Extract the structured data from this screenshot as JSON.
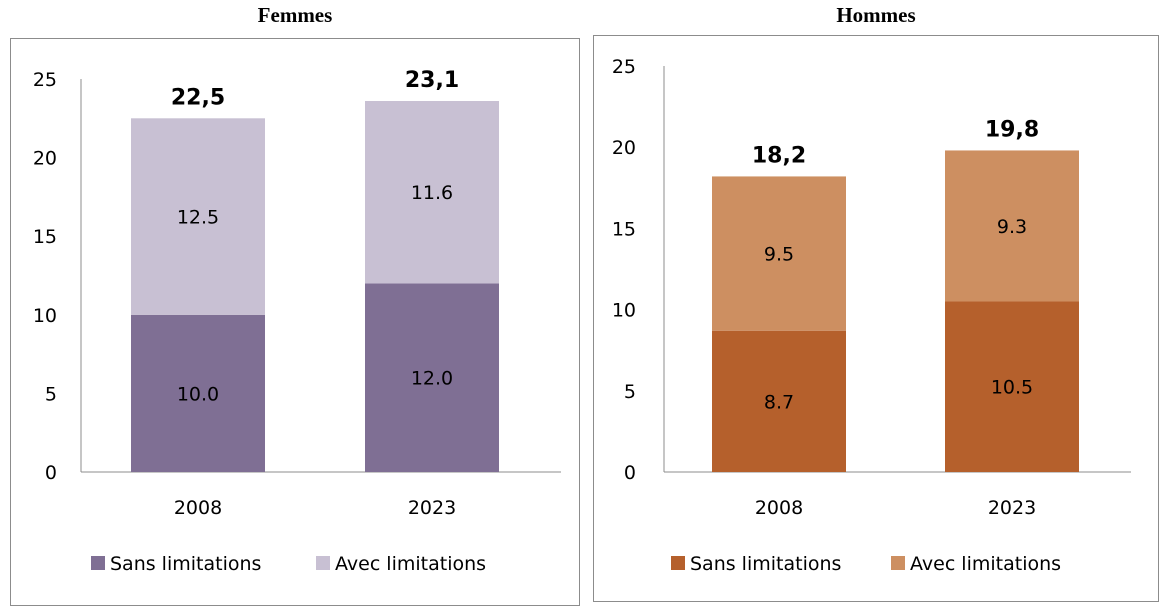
{
  "chart_data": [
    {
      "type": "bar",
      "stacked": true,
      "title": "Femmes",
      "categories": [
        "2008",
        "2023"
      ],
      "series": [
        {
          "name": "Sans limitations",
          "values": [
            10.0,
            12.0
          ],
          "value_labels": [
            "10.0",
            "12.0"
          ],
          "color": "#7f6f94"
        },
        {
          "name": "Avec limitations",
          "values": [
            12.5,
            11.6
          ],
          "value_labels": [
            "12.5",
            "11.6"
          ],
          "color": "#c8c0d3"
        }
      ],
      "totals": [
        "22,5",
        "23,1"
      ],
      "yticks": [
        "0",
        "5",
        "10",
        "15",
        "20",
        "25"
      ],
      "ylim": [
        0,
        25
      ],
      "grid": false,
      "legend_position": "bottom"
    },
    {
      "type": "bar",
      "stacked": true,
      "title": "Hommes",
      "categories": [
        "2008",
        "2023"
      ],
      "series": [
        {
          "name": "Sans limitations",
          "values": [
            8.7,
            10.5
          ],
          "value_labels": [
            "8.7",
            "10.5"
          ],
          "color": "#b5602c"
        },
        {
          "name": "Avec limitations",
          "values": [
            9.5,
            9.3
          ],
          "value_labels": [
            "9.5",
            "9.3"
          ],
          "color": "#cd8f61"
        }
      ],
      "totals": [
        "18,2",
        "19,8"
      ],
      "yticks": [
        "0",
        "5",
        "10",
        "15",
        "20",
        "25"
      ],
      "ylim": [
        0,
        25
      ],
      "grid": false,
      "legend_position": "bottom"
    }
  ]
}
